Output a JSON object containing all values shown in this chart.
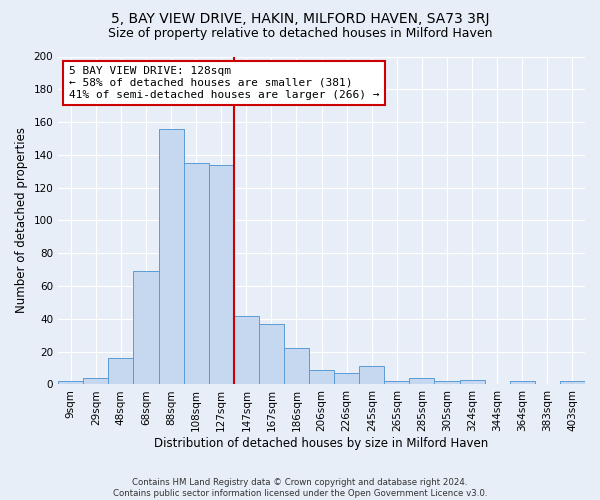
{
  "title": "5, BAY VIEW DRIVE, HAKIN, MILFORD HAVEN, SA73 3RJ",
  "subtitle": "Size of property relative to detached houses in Milford Haven",
  "xlabel": "Distribution of detached houses by size in Milford Haven",
  "ylabel": "Number of detached properties",
  "footer_line1": "Contains HM Land Registry data © Crown copyright and database right 2024.",
  "footer_line2": "Contains public sector information licensed under the Open Government Licence v3.0.",
  "bin_labels": [
    "9sqm",
    "29sqm",
    "48sqm",
    "68sqm",
    "88sqm",
    "108sqm",
    "127sqm",
    "147sqm",
    "167sqm",
    "186sqm",
    "206sqm",
    "226sqm",
    "245sqm",
    "265sqm",
    "285sqm",
    "305sqm",
    "324sqm",
    "344sqm",
    "364sqm",
    "383sqm",
    "403sqm"
  ],
  "bar_heights": [
    2,
    4,
    16,
    69,
    156,
    135,
    134,
    42,
    37,
    22,
    9,
    7,
    11,
    2,
    4,
    2,
    3,
    0,
    2,
    0,
    2
  ],
  "bar_color": "#c5d8ef",
  "bar_edge_color": "#5b9bd5",
  "annotation_text": "5 BAY VIEW DRIVE: 128sqm\n← 58% of detached houses are smaller (381)\n41% of semi-detached houses are larger (266) →",
  "annotation_box_color": "#ffffff",
  "annotation_box_edge": "#cc0000",
  "vline_color": "#cc0000",
  "vline_x": 6.5,
  "ylim": [
    0,
    200
  ],
  "yticks": [
    0,
    20,
    40,
    60,
    80,
    100,
    120,
    140,
    160,
    180,
    200
  ],
  "bg_color": "#e8eef7",
  "grid_color": "#ffffff",
  "title_fontsize": 10,
  "subtitle_fontsize": 9,
  "axis_label_fontsize": 8.5,
  "tick_fontsize": 7.5
}
